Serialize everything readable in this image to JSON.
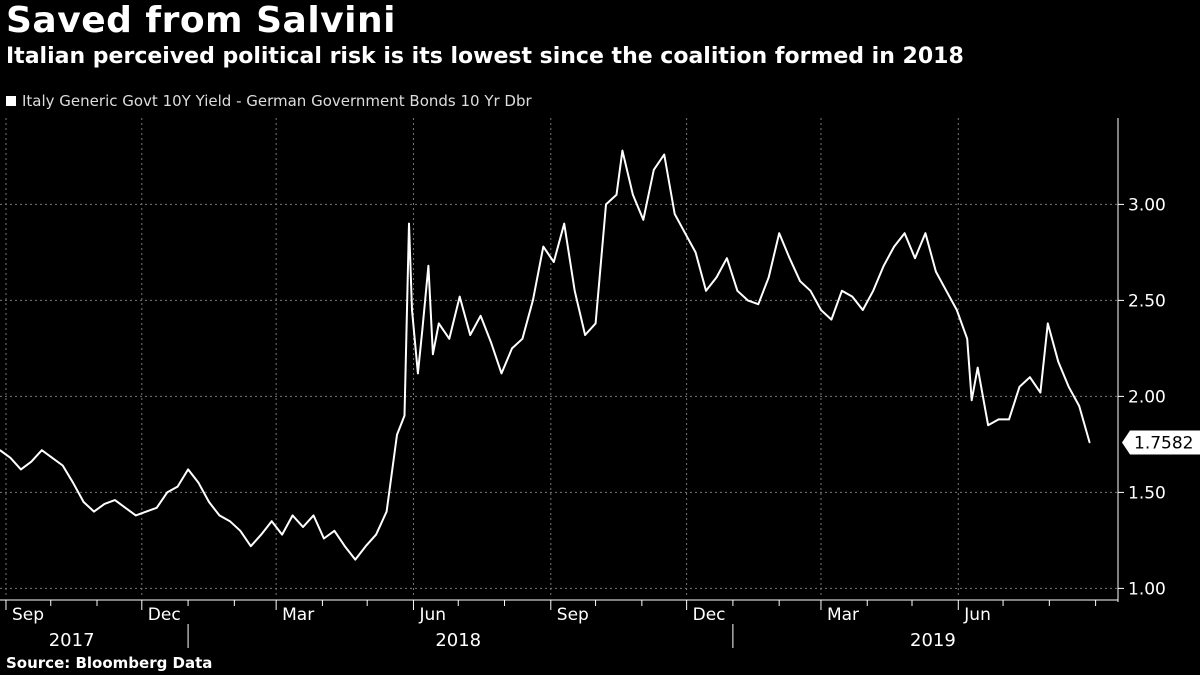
{
  "chart_data": {
    "type": "line",
    "title": "Saved from Salvini",
    "subtitle": "Italian perceived political risk is its lowest since the coalition formed in 2018",
    "source": "Source: Bloomberg Data",
    "legend": "top-left",
    "grid": true,
    "ylim": [
      0.95,
      3.45
    ],
    "y_ticks": [
      1.0,
      1.5,
      2.0,
      2.5,
      3.0
    ],
    "y_tick_labels": [
      "1.00",
      "1.50",
      "2.00",
      "2.50",
      "3.00"
    ],
    "x_start": "2017-08-28",
    "x_end": "2019-09-16",
    "month_ticks": [
      {
        "date": "2017-09-01",
        "label": "Sep"
      },
      {
        "date": "2017-12-01",
        "label": "Dec"
      },
      {
        "date": "2018-03-01",
        "label": "Mar"
      },
      {
        "date": "2018-06-01",
        "label": "Jun"
      },
      {
        "date": "2018-09-01",
        "label": "Sep"
      },
      {
        "date": "2018-12-01",
        "label": "Dec"
      },
      {
        "date": "2019-03-01",
        "label": "Mar"
      },
      {
        "date": "2019-06-01",
        "label": "Jun"
      }
    ],
    "minor_ticks": [
      "2017-10-01",
      "2017-11-01",
      "2018-01-01",
      "2018-02-01",
      "2018-04-01",
      "2018-05-01",
      "2018-07-01",
      "2018-08-01",
      "2018-10-01",
      "2018-11-01",
      "2019-01-01",
      "2019-02-01",
      "2019-04-01",
      "2019-05-01",
      "2019-07-01",
      "2019-08-01",
      "2019-09-01"
    ],
    "year_labels": [
      {
        "label": "2017",
        "center": "2017-10-15"
      },
      {
        "label": "2018",
        "center": "2018-07-01"
      },
      {
        "label": "2019",
        "center": "2019-05-15"
      }
    ],
    "year_dividers": [
      "2018-01-01",
      "2019-01-01"
    ],
    "last_value_label": "1.7582",
    "series": [
      {
        "name": "Italy Generic Govt 10Y Yield - German Government Bonds 10 Yr Dbr",
        "color": "#ffffff",
        "points": [
          [
            "2017-08-28",
            1.72
          ],
          [
            "2017-09-04",
            1.68
          ],
          [
            "2017-09-11",
            1.62
          ],
          [
            "2017-09-18",
            1.66
          ],
          [
            "2017-09-25",
            1.72
          ],
          [
            "2017-10-02",
            1.68
          ],
          [
            "2017-10-09",
            1.64
          ],
          [
            "2017-10-16",
            1.55
          ],
          [
            "2017-10-23",
            1.45
          ],
          [
            "2017-10-30",
            1.4
          ],
          [
            "2017-11-06",
            1.44
          ],
          [
            "2017-11-13",
            1.46
          ],
          [
            "2017-11-20",
            1.42
          ],
          [
            "2017-11-27",
            1.38
          ],
          [
            "2017-12-04",
            1.4
          ],
          [
            "2017-12-11",
            1.42
          ],
          [
            "2017-12-18",
            1.5
          ],
          [
            "2017-12-25",
            1.53
          ],
          [
            "2018-01-01",
            1.62
          ],
          [
            "2018-01-08",
            1.55
          ],
          [
            "2018-01-15",
            1.45
          ],
          [
            "2018-01-22",
            1.38
          ],
          [
            "2018-01-29",
            1.35
          ],
          [
            "2018-02-05",
            1.3
          ],
          [
            "2018-02-12",
            1.22
          ],
          [
            "2018-02-19",
            1.28
          ],
          [
            "2018-02-26",
            1.35
          ],
          [
            "2018-03-05",
            1.28
          ],
          [
            "2018-03-12",
            1.38
          ],
          [
            "2018-03-19",
            1.32
          ],
          [
            "2018-03-26",
            1.38
          ],
          [
            "2018-04-02",
            1.26
          ],
          [
            "2018-04-09",
            1.3
          ],
          [
            "2018-04-16",
            1.22
          ],
          [
            "2018-04-23",
            1.15
          ],
          [
            "2018-04-30",
            1.22
          ],
          [
            "2018-05-07",
            1.28
          ],
          [
            "2018-05-14",
            1.4
          ],
          [
            "2018-05-21",
            1.8
          ],
          [
            "2018-05-26",
            1.9
          ],
          [
            "2018-05-29",
            2.9
          ],
          [
            "2018-05-31",
            2.45
          ],
          [
            "2018-06-04",
            2.12
          ],
          [
            "2018-06-07",
            2.35
          ],
          [
            "2018-06-11",
            2.68
          ],
          [
            "2018-06-14",
            2.22
          ],
          [
            "2018-06-18",
            2.38
          ],
          [
            "2018-06-25",
            2.3
          ],
          [
            "2018-07-02",
            2.52
          ],
          [
            "2018-07-09",
            2.32
          ],
          [
            "2018-07-16",
            2.42
          ],
          [
            "2018-07-23",
            2.28
          ],
          [
            "2018-07-30",
            2.12
          ],
          [
            "2018-08-06",
            2.25
          ],
          [
            "2018-08-13",
            2.3
          ],
          [
            "2018-08-20",
            2.5
          ],
          [
            "2018-08-27",
            2.78
          ],
          [
            "2018-09-03",
            2.7
          ],
          [
            "2018-09-10",
            2.9
          ],
          [
            "2018-09-17",
            2.55
          ],
          [
            "2018-09-24",
            2.32
          ],
          [
            "2018-10-01",
            2.38
          ],
          [
            "2018-10-08",
            3.0
          ],
          [
            "2018-10-15",
            3.05
          ],
          [
            "2018-10-19",
            3.28
          ],
          [
            "2018-10-26",
            3.05
          ],
          [
            "2018-11-02",
            2.92
          ],
          [
            "2018-11-09",
            3.18
          ],
          [
            "2018-11-16",
            3.26
          ],
          [
            "2018-11-23",
            2.95
          ],
          [
            "2018-11-30",
            2.85
          ],
          [
            "2018-12-07",
            2.75
          ],
          [
            "2018-12-14",
            2.55
          ],
          [
            "2018-12-21",
            2.62
          ],
          [
            "2018-12-28",
            2.72
          ],
          [
            "2019-01-04",
            2.55
          ],
          [
            "2019-01-11",
            2.5
          ],
          [
            "2019-01-18",
            2.48
          ],
          [
            "2019-01-25",
            2.62
          ],
          [
            "2019-02-01",
            2.85
          ],
          [
            "2019-02-08",
            2.72
          ],
          [
            "2019-02-15",
            2.6
          ],
          [
            "2019-02-22",
            2.55
          ],
          [
            "2019-03-01",
            2.45
          ],
          [
            "2019-03-08",
            2.4
          ],
          [
            "2019-03-15",
            2.55
          ],
          [
            "2019-03-22",
            2.52
          ],
          [
            "2019-03-29",
            2.45
          ],
          [
            "2019-04-05",
            2.55
          ],
          [
            "2019-04-12",
            2.68
          ],
          [
            "2019-04-19",
            2.78
          ],
          [
            "2019-04-26",
            2.85
          ],
          [
            "2019-05-03",
            2.72
          ],
          [
            "2019-05-10",
            2.85
          ],
          [
            "2019-05-17",
            2.65
          ],
          [
            "2019-05-24",
            2.55
          ],
          [
            "2019-05-31",
            2.45
          ],
          [
            "2019-06-07",
            2.3
          ],
          [
            "2019-06-10",
            1.98
          ],
          [
            "2019-06-14",
            2.15
          ],
          [
            "2019-06-21",
            1.85
          ],
          [
            "2019-06-28",
            1.88
          ],
          [
            "2019-07-05",
            1.88
          ],
          [
            "2019-07-12",
            2.05
          ],
          [
            "2019-07-19",
            2.1
          ],
          [
            "2019-07-26",
            2.02
          ],
          [
            "2019-07-31",
            2.38
          ],
          [
            "2019-08-07",
            2.18
          ],
          [
            "2019-08-14",
            2.05
          ],
          [
            "2019-08-21",
            1.95
          ],
          [
            "2019-08-28",
            1.76
          ]
        ]
      }
    ]
  }
}
